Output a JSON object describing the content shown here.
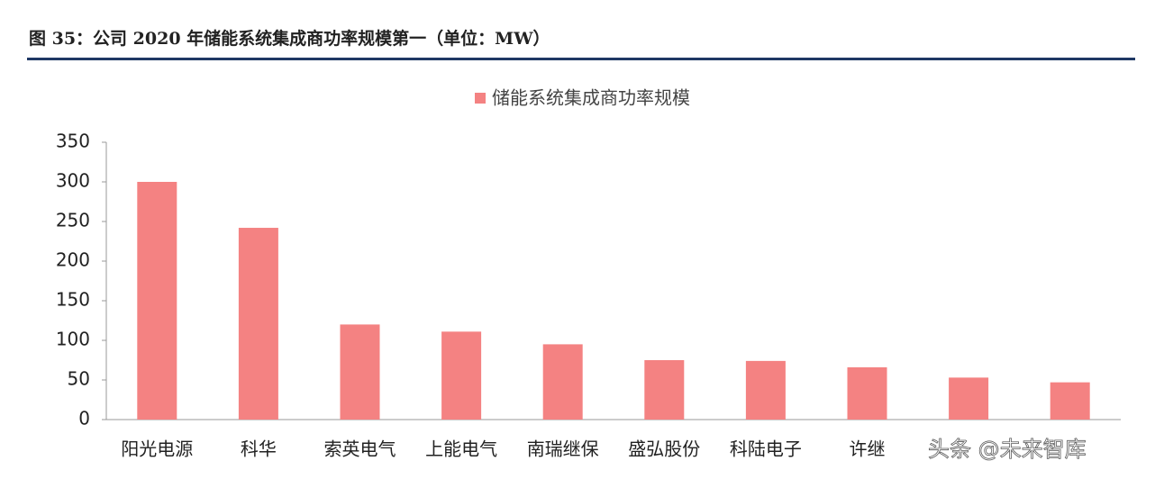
{
  "chart_data": {
    "type": "bar",
    "title": "图 35：公司 2020 年储能系统集成商功率规模第一（单位：MW）",
    "legend": "储能系统集成商功率规模",
    "categories": [
      "阳光电源",
      "科华",
      "索英电气",
      "上能电气",
      "南瑞继保",
      "盛弘股份",
      "科陆电子",
      "许继",
      null,
      null
    ],
    "values": [
      300,
      242,
      120,
      111,
      95,
      75,
      74,
      66,
      53,
      47
    ],
    "color": "#f48282",
    "ylim": [
      0,
      350
    ],
    "yticks": [
      0,
      50,
      100,
      150,
      200,
      250,
      300,
      350
    ],
    "grid": false
  },
  "watermark": "头条 @未来智库"
}
